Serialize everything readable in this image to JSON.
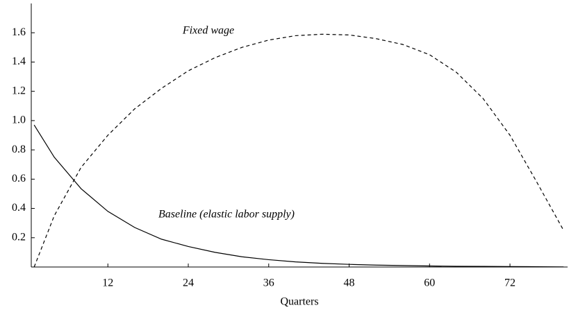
{
  "chart_data": {
    "type": "line",
    "x_label": "Quarters",
    "annotations": [
      "Fixed wage",
      "Baseline (elastic labor supply)"
    ],
    "x": [
      1,
      4,
      8,
      12,
      16,
      20,
      24,
      28,
      32,
      36,
      40,
      44,
      48,
      52,
      56,
      60,
      64,
      68,
      72,
      76,
      80
    ],
    "series": [
      {
        "name": "Baseline (elastic labor supply)",
        "color": "#000000",
        "dash": false,
        "values": [
          0.97,
          0.75,
          0.535,
          0.38,
          0.27,
          0.19,
          0.14,
          0.1,
          0.07,
          0.05,
          0.035,
          0.025,
          0.018,
          0.013,
          0.01,
          0.007,
          0.005,
          0.004,
          0.003,
          0.002,
          0.001
        ]
      },
      {
        "name": "Fixed wage",
        "color": "#000000",
        "dash": true,
        "values": [
          0,
          0.35,
          0.68,
          0.9,
          1.08,
          1.22,
          1.34,
          1.43,
          1.5,
          1.55,
          1.58,
          1.59,
          1.585,
          1.56,
          1.52,
          1.45,
          1.33,
          1.15,
          0.9,
          0.58,
          0.25
        ]
      }
    ],
    "xlim": [
      0.57,
      80.6
    ],
    "ylim": [
      0,
      1.8
    ],
    "xticks": [
      12,
      24,
      36,
      48,
      60,
      72
    ],
    "yticks": [
      0.2,
      0.4,
      0.6,
      0.8,
      {
        "value": 1,
        "label": "1.0"
      },
      1.2,
      1.4,
      1.6
    ]
  }
}
